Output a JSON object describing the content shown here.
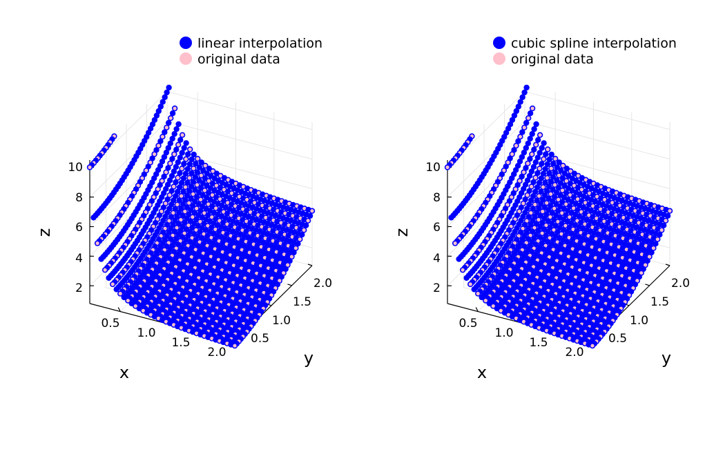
{
  "chart_data": [
    {
      "type": "scatter3d",
      "title": "",
      "xlabel": "x",
      "ylabel": "y",
      "zlabel": "z",
      "xlim": [
        0.1,
        2.0
      ],
      "ylim": [
        0.1,
        2.0
      ],
      "zlim": [
        0.8,
        10.5
      ],
      "xticks": [
        "0.5",
        "1.0",
        "1.5",
        "2.0"
      ],
      "yticks": [
        "0.5",
        "1.0",
        "1.5",
        "2.0"
      ],
      "zticks": [
        "2",
        "4",
        "6",
        "8",
        "10"
      ],
      "grid": true,
      "legend_position": "top-right",
      "surface_function": "z = 1/x + y^2",
      "series": [
        {
          "name": "linear interpolation",
          "color": "#0000ff",
          "x": {
            "start": 0.1,
            "stop": 2.0,
            "count": 39
          },
          "y": {
            "start": 0.1,
            "stop": 2.0,
            "count": 39
          }
        },
        {
          "name": "original data",
          "color": "#ffc0cb",
          "x": {
            "start": 0.1,
            "stop": 2.0,
            "count": 20
          },
          "y": {
            "start": 0.1,
            "stop": 2.0,
            "count": 20
          }
        }
      ]
    },
    {
      "type": "scatter3d",
      "title": "",
      "xlabel": "x",
      "ylabel": "y",
      "zlabel": "z",
      "xlim": [
        0.1,
        2.0
      ],
      "ylim": [
        0.1,
        2.0
      ],
      "zlim": [
        0.8,
        10.5
      ],
      "xticks": [
        "0.5",
        "1.0",
        "1.5",
        "2.0"
      ],
      "yticks": [
        "0.5",
        "1.0",
        "1.5",
        "2.0"
      ],
      "zticks": [
        "2",
        "4",
        "6",
        "8",
        "10"
      ],
      "grid": true,
      "legend_position": "top-right",
      "surface_function": "z = 1/x + y^2",
      "series": [
        {
          "name": "cubic spline interpolation",
          "color": "#0000ff",
          "x": {
            "start": 0.1,
            "stop": 2.0,
            "count": 39
          },
          "y": {
            "start": 0.1,
            "stop": 2.0,
            "count": 39
          }
        },
        {
          "name": "original data",
          "color": "#ffc0cb",
          "x": {
            "start": 0.1,
            "stop": 2.0,
            "count": 20
          },
          "y": {
            "start": 0.1,
            "stop": 2.0,
            "count": 20
          }
        }
      ]
    }
  ]
}
